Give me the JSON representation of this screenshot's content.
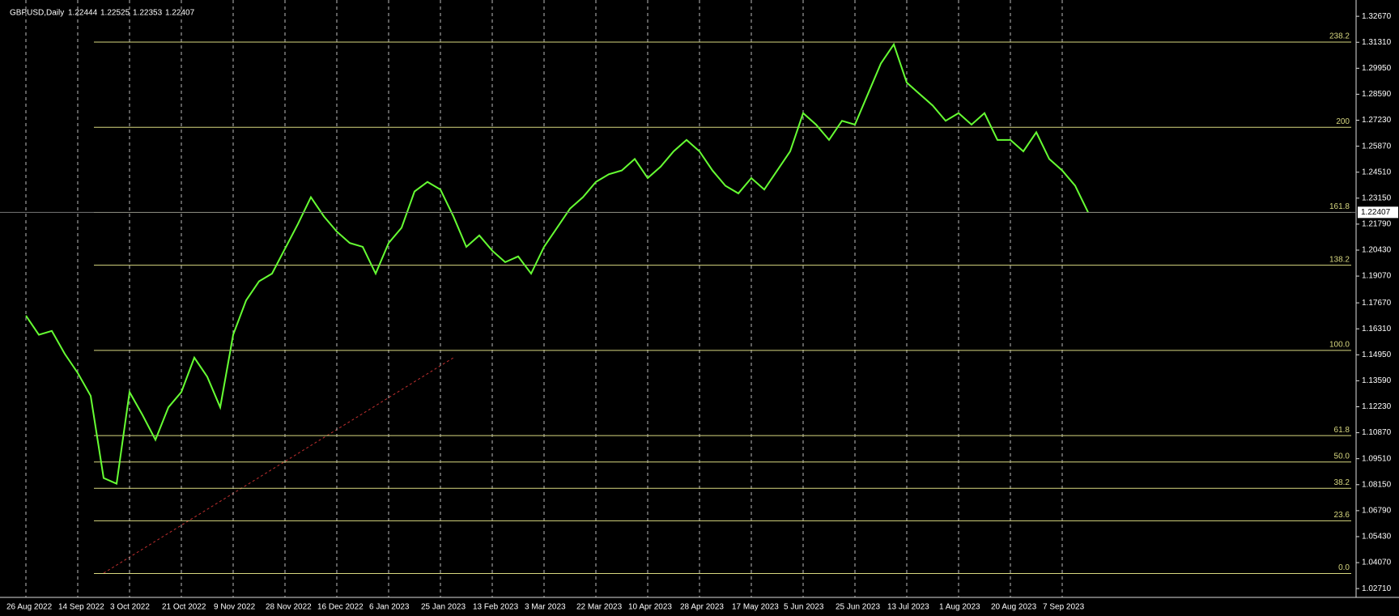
{
  "chart_data": {
    "type": "line",
    "title": "GBPUSD,Daily",
    "ohlc": {
      "open": 1.22444,
      "high": 1.22525,
      "low": 1.22353,
      "close": 1.22407
    },
    "categories": [
      "26 Aug 2022",
      null,
      null,
      null,
      "14 Sep 2022",
      null,
      null,
      null,
      "3 Oct 2022",
      null,
      null,
      null,
      "21 Oct 2022",
      null,
      null,
      null,
      "9 Nov 2022",
      null,
      null,
      null,
      "28 Nov 2022",
      null,
      null,
      null,
      "16 Dec 2022",
      null,
      null,
      null,
      "6 Jan 2023",
      null,
      null,
      null,
      "25 Jan 2023",
      null,
      null,
      null,
      "13 Feb 2023",
      null,
      null,
      null,
      "3 Mar 2023",
      null,
      null,
      null,
      "22 Mar 2023",
      null,
      null,
      null,
      "10 Apr 2023",
      null,
      null,
      null,
      "28 Apr 2023",
      null,
      null,
      null,
      "17 May 2023",
      null,
      null,
      null,
      "5 Jun 2023",
      null,
      null,
      null,
      "25 Jun 2023",
      null,
      null,
      null,
      "13 Jul 2023",
      null,
      null,
      null,
      "1 Aug 2023",
      null,
      null,
      null,
      "20 Aug 2023",
      null,
      null,
      null,
      "7 Sep 2023",
      null,
      null
    ],
    "values": [
      1.17,
      1.16,
      1.162,
      1.15,
      1.14,
      1.128,
      1.085,
      1.082,
      1.13,
      1.118,
      1.105,
      1.122,
      1.13,
      1.148,
      1.138,
      1.122,
      1.16,
      1.178,
      1.188,
      1.192,
      1.205,
      1.218,
      1.232,
      1.222,
      1.214,
      1.208,
      1.206,
      1.192,
      1.208,
      1.216,
      1.235,
      1.24,
      1.236,
      1.222,
      1.206,
      1.212,
      1.204,
      1.198,
      1.201,
      1.192,
      1.206,
      1.216,
      1.226,
      1.232,
      1.24,
      1.244,
      1.246,
      1.252,
      1.242,
      1.248,
      1.256,
      1.262,
      1.256,
      1.246,
      1.238,
      1.234,
      1.242,
      1.236,
      1.246,
      1.256,
      1.276,
      1.27,
      1.262,
      1.272,
      1.27,
      1.286,
      1.302,
      1.312,
      1.292,
      1.286,
      1.28,
      1.272,
      1.276,
      1.27,
      1.276,
      1.262,
      1.262,
      1.256,
      1.266,
      1.252,
      1.246,
      1.238,
      1.22407
    ],
    "color": "#66ff33",
    "ylim": [
      1.0225,
      1.331
    ],
    "yticks": [
      {
        "value": 1.3267,
        "label": "1.32670"
      },
      {
        "value": 1.3131,
        "label": "1.31310"
      },
      {
        "value": 1.2995,
        "label": "1.29950"
      },
      {
        "value": 1.2859,
        "label": "1.28590"
      },
      {
        "value": 1.2723,
        "label": "1.27230"
      },
      {
        "value": 1.2587,
        "label": "1.25870"
      },
      {
        "value": 1.2451,
        "label": "1.24510"
      },
      {
        "value": 1.2315,
        "label": "1.23150"
      },
      {
        "value": 1.2179,
        "label": "1.21790"
      },
      {
        "value": 1.2043,
        "label": "1.20430"
      },
      {
        "value": 1.1907,
        "label": "1.19070"
      },
      {
        "value": 1.1767,
        "label": "1.17670"
      },
      {
        "value": 1.1631,
        "label": "1.16310"
      },
      {
        "value": 1.1495,
        "label": "1.14950"
      },
      {
        "value": 1.1359,
        "label": "1.13590"
      },
      {
        "value": 1.1223,
        "label": "1.12230"
      },
      {
        "value": 1.1087,
        "label": "1.10870"
      },
      {
        "value": 1.0951,
        "label": "1.09510"
      },
      {
        "value": 1.0815,
        "label": "1.08150"
      },
      {
        "value": 1.0679,
        "label": "1.06790"
      },
      {
        "value": 1.0543,
        "label": "1.05430"
      },
      {
        "value": 1.0407,
        "label": "1.04070"
      },
      {
        "value": 1.0271,
        "label": "1.02710"
      }
    ],
    "fib_levels": [
      {
        "level": "0.0",
        "price": 1.035
      },
      {
        "level": "23.6",
        "price": 1.0626
      },
      {
        "level": "38.2",
        "price": 1.0796
      },
      {
        "level": "50.0",
        "price": 1.0934
      },
      {
        "level": "61.8",
        "price": 1.1072
      },
      {
        "level": "100.0",
        "price": 1.1518
      },
      {
        "level": "138.2",
        "price": 1.1964
      },
      {
        "level": "161.8",
        "price": 1.224
      },
      {
        "level": "200",
        "price": 1.2686
      },
      {
        "level": "238.2",
        "price": 1.3132
      }
    ],
    "fib_color": "#d8d880",
    "grid": true
  }
}
